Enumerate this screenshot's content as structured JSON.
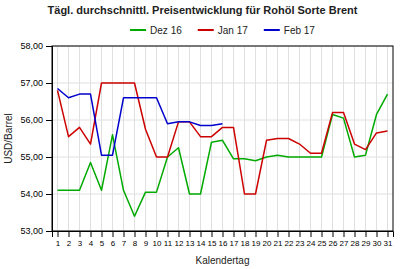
{
  "chart_data": {
    "type": "line",
    "title": "Tägl. durchschnittl. Preisentwicklung für Rohöl Sorte Brent",
    "x_label": "Kalendertag",
    "y_label": "USD/Barrel",
    "x": [
      1,
      2,
      3,
      4,
      5,
      6,
      7,
      8,
      9,
      10,
      11,
      12,
      13,
      14,
      15,
      16,
      17,
      18,
      19,
      20,
      21,
      22,
      23,
      24,
      25,
      26,
      27,
      28,
      29,
      30,
      31
    ],
    "series": [
      {
        "name": "Dez 16",
        "color": "#00AA00",
        "values": [
          54.1,
          54.1,
          54.1,
          54.85,
          54.1,
          55.6,
          54.1,
          53.4,
          54.05,
          54.05,
          55.0,
          55.25,
          54.0,
          54.0,
          55.4,
          55.45,
          54.95,
          54.95,
          54.9,
          55.0,
          55.05,
          55.0,
          55.0,
          55.0,
          55.0,
          56.15,
          56.05,
          55.0,
          55.05,
          56.15,
          56.7
        ]
      },
      {
        "name": "Jan 17",
        "color": "#CC0000",
        "values": [
          56.8,
          55.55,
          55.8,
          55.35,
          57.0,
          57.0,
          57.0,
          57.0,
          55.75,
          55.0,
          55.0,
          55.95,
          55.95,
          55.55,
          55.55,
          55.8,
          55.8,
          54.0,
          54.0,
          55.45,
          55.5,
          55.5,
          55.35,
          55.1,
          55.1,
          56.2,
          56.2,
          55.35,
          55.2,
          55.65,
          55.7
        ]
      },
      {
        "name": "Feb 17",
        "color": "#0000CC",
        "values": [
          56.85,
          56.6,
          56.7,
          56.7,
          55.05,
          55.05,
          56.6,
          56.6,
          56.6,
          56.6,
          55.9,
          55.95,
          55.95,
          55.85,
          55.85,
          55.9,
          null,
          null,
          null,
          null,
          null,
          null,
          null,
          null,
          null,
          null,
          null,
          null,
          null,
          null,
          null
        ]
      }
    ],
    "xlim": [
      0.5,
      31.5
    ],
    "xticks": [
      1,
      2,
      3,
      4,
      5,
      6,
      7,
      8,
      9,
      10,
      11,
      12,
      13,
      14,
      15,
      16,
      17,
      18,
      19,
      20,
      21,
      22,
      23,
      24,
      25,
      26,
      27,
      28,
      29,
      30,
      31
    ],
    "ylim": [
      53.0,
      58.0
    ],
    "yticks": [
      {
        "value": 53.0,
        "label": "53,00"
      },
      {
        "value": 54.0,
        "label": "54,00"
      },
      {
        "value": 55.0,
        "label": "55,00"
      },
      {
        "value": 56.0,
        "label": "56,00"
      },
      {
        "value": 57.0,
        "label": "57,00"
      },
      {
        "value": 58.0,
        "label": "58,00"
      }
    ],
    "grid": true,
    "legend": "top"
  }
}
